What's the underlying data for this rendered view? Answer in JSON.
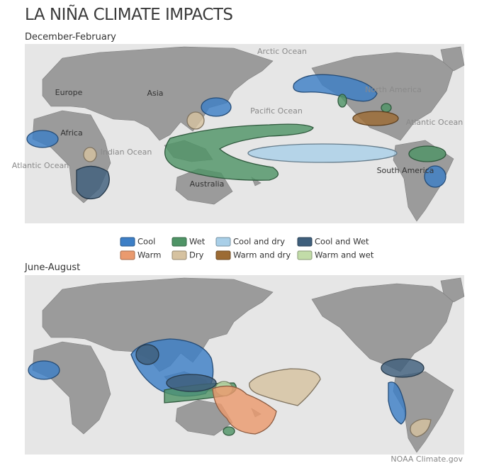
{
  "title": "LA NIÑA CLIMATE IMPACTS",
  "panels": [
    {
      "season": "December-February",
      "labels": [
        "Arctic Ocean",
        "Europe",
        "Asia",
        "North America",
        "Africa",
        "Pacific Ocean",
        "Atlantic Ocean",
        "Indian Ocean",
        "Atlantic Ocean",
        "Australia",
        "South America"
      ]
    },
    {
      "season": "June-August"
    }
  ],
  "legend": [
    {
      "label": "Cool",
      "color": "#3d7fc6"
    },
    {
      "label": "Wet",
      "color": "#4f9466"
    },
    {
      "label": "Cool and dry",
      "color": "#a9cfe8"
    },
    {
      "label": "Cool and Wet",
      "color": "#3f5f7c"
    },
    {
      "label": "Warm",
      "color": "#ea9a6e"
    },
    {
      "label": "Dry",
      "color": "#d6c2a0"
    },
    {
      "label": "Warm and dry",
      "color": "#9c6b34"
    },
    {
      "label": "Warm and wet",
      "color": "#c2dca8"
    }
  ],
  "credit": "NOAA Climate.gov"
}
